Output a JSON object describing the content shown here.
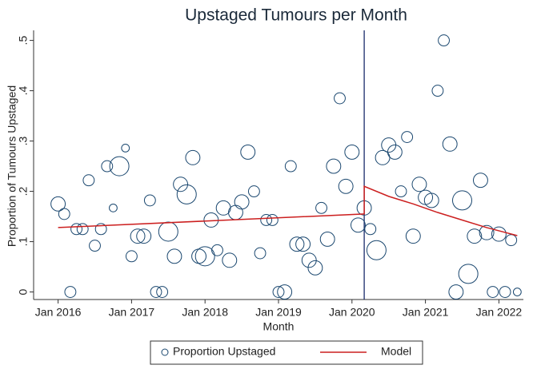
{
  "chart_data": {
    "type": "scatter",
    "title": "Upstaged Tumours per Month",
    "x_label": "Month",
    "y_label": "Proportion of Tumours Upstaged",
    "xlim": [
      "2015-09",
      "2022-05"
    ],
    "xticks": [
      {
        "value": "2016-01",
        "label": "Jan 2016"
      },
      {
        "value": "2017-01",
        "label": "Jan 2017"
      },
      {
        "value": "2018-01",
        "label": "Jan 2018"
      },
      {
        "value": "2019-01",
        "label": "Jan 2019"
      },
      {
        "value": "2020-01",
        "label": "Jan 2020"
      },
      {
        "value": "2021-01",
        "label": "Jan 2021"
      },
      {
        "value": "2022-01",
        "label": "Jan 2022"
      }
    ],
    "ylim": [
      -0.015,
      0.52
    ],
    "yticks": [
      0,
      {
        "value": 0.1,
        "label": ".1"
      },
      {
        "value": 0.2,
        "label": ".2"
      },
      {
        "value": 0.3,
        "label": ".3"
      },
      {
        "value": 0.4,
        "label": ".4"
      },
      {
        "value": 0.5,
        "label": ".5"
      }
    ],
    "grid": false,
    "vline": "2020-03",
    "vline_color": "#1a2a6c",
    "series": [
      {
        "name": "Proportion Upstaged",
        "type": "scatter",
        "color": "#1a476f",
        "x": [
          "2016-01",
          "2016-02",
          "2016-03",
          "2016-04",
          "2016-05",
          "2016-06",
          "2016-07",
          "2016-08",
          "2016-09",
          "2016-10",
          "2016-11",
          "2016-12",
          "2017-01",
          "2017-02",
          "2017-03",
          "2017-04",
          "2017-05",
          "2017-06",
          "2017-07",
          "2017-08",
          "2017-09",
          "2017-10",
          "2017-11",
          "2017-12",
          "2018-01",
          "2018-02",
          "2018-03",
          "2018-04",
          "2018-05",
          "2018-06",
          "2018-07",
          "2018-08",
          "2018-09",
          "2018-10",
          "2018-11",
          "2018-12",
          "2019-01",
          "2019-02",
          "2019-03",
          "2019-04",
          "2019-05",
          "2019-06",
          "2019-07",
          "2019-08",
          "2019-09",
          "2019-10",
          "2019-11",
          "2019-12",
          "2020-01",
          "2020-02",
          "2020-03",
          "2020-04",
          "2020-05",
          "2020-06",
          "2020-07",
          "2020-08",
          "2020-09",
          "2020-10",
          "2020-11",
          "2020-12",
          "2021-01",
          "2021-02",
          "2021-03",
          "2021-04",
          "2021-05",
          "2021-06",
          "2021-07",
          "2021-08",
          "2021-09",
          "2021-10",
          "2021-11",
          "2021-12",
          "2022-01",
          "2022-02",
          "2022-03",
          "2022-04"
        ],
        "values": [
          0.175,
          0.155,
          0,
          0.125,
          0.125,
          0.222,
          0.092,
          0.125,
          0.25,
          0.167,
          0.25,
          0.286,
          0.071,
          0.111,
          0.111,
          0.182,
          0,
          0,
          0.12,
          0.071,
          0.214,
          0.194,
          0.267,
          0.071,
          0.071,
          0.143,
          0.083,
          0.167,
          0.063,
          0.158,
          0.179,
          0.278,
          0.2,
          0.077,
          0.143,
          0.143,
          0,
          0,
          0.25,
          0.095,
          0.095,
          0.063,
          0.048,
          0.167,
          0.105,
          0.25,
          0.385,
          0.21,
          0.278,
          0.133,
          0.167,
          0.125,
          0.083,
          0.267,
          0.292,
          0.278,
          0.2,
          0.308,
          0.111,
          0.214,
          0.188,
          0.182,
          0.4,
          0.5,
          0.294,
          0,
          0.182,
          0.036,
          0.111,
          0.222,
          0.118,
          0,
          0.115,
          0,
          0.103,
          0
        ],
        "sizes": [
          5,
          3,
          3,
          3,
          3,
          3,
          3,
          3,
          3,
          1.5,
          9,
          1.5,
          3,
          5,
          5,
          3,
          3,
          3,
          9,
          5,
          5,
          9,
          5,
          5,
          9,
          5,
          3,
          5,
          5,
          5,
          5,
          5,
          3,
          3,
          3,
          3,
          3,
          5,
          3,
          5,
          5,
          5,
          5,
          3,
          5,
          5,
          3,
          5,
          5,
          5,
          5,
          3,
          9,
          5,
          5,
          5,
          3,
          3,
          5,
          5,
          5,
          5,
          3,
          3,
          5,
          5,
          9,
          9,
          5,
          5,
          5,
          3,
          5,
          3,
          3,
          1.5
        ]
      },
      {
        "name": "Model",
        "type": "line",
        "color": "#cc1f1f",
        "x": [
          "2016-01",
          "2020-03",
          "2020-03",
          "2020-07",
          "2020-11",
          "2021-03",
          "2021-07",
          "2021-11",
          "2022-04"
        ],
        "values": [
          0.128,
          0.155,
          0.21,
          0.19,
          0.175,
          0.158,
          0.143,
          0.128,
          0.112
        ]
      }
    ]
  }
}
